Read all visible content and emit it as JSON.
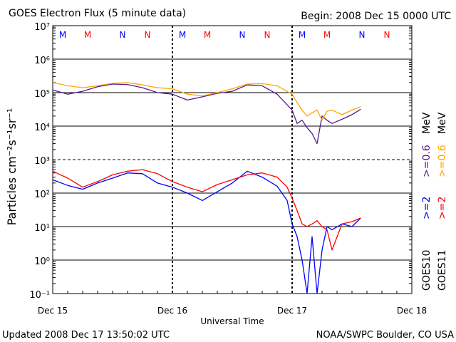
{
  "header": {
    "title": "GOES Electron Flux (5 minute data)",
    "begin": "Begin: 2008 Dec 15 0000 UTC"
  },
  "footer": {
    "updated": "Updated 2008 Dec 17 13:50:02 UTC",
    "source": "NOAA/SWPC Boulder, CO USA"
  },
  "colors": {
    "goes10_ge2": "#0000ff",
    "goes10_ge06": "#551a8b",
    "goes11_ge2": "#ff0000",
    "goes11_ge06": "#ffa500"
  },
  "chart_data": {
    "type": "line",
    "title": "GOES Electron Flux (5 minute data)",
    "xlabel": "Universal Time",
    "ylabel": "Particles cm⁻²s⁻¹sr⁻¹",
    "y_scale": "log",
    "ylim": [
      0.1,
      10000000
    ],
    "xlim": [
      "2008-12-15T00:00",
      "2008-12-18T00:00"
    ],
    "x_ticks": [
      "Dec 15",
      "Dec 16",
      "Dec 17",
      "Dec 18"
    ],
    "y_ticks": [
      "10⁻¹",
      "10⁰",
      "10¹",
      "10²",
      "10³",
      "10⁴",
      "10⁵",
      "10⁶",
      "10⁷"
    ],
    "grid": true,
    "threshold_line": 1000,
    "markers": [
      {
        "label": "M",
        "time": "2008-12-15T02:00",
        "color": "#0000ff"
      },
      {
        "label": "M",
        "time": "2008-12-15T07:00",
        "color": "#ff0000"
      },
      {
        "label": "N",
        "time": "2008-12-15T14:00",
        "color": "#0000ff"
      },
      {
        "label": "N",
        "time": "2008-12-15T19:00",
        "color": "#ff0000"
      },
      {
        "label": "M",
        "time": "2008-12-16T02:00",
        "color": "#0000ff"
      },
      {
        "label": "M",
        "time": "2008-12-16T07:00",
        "color": "#ff0000"
      },
      {
        "label": "N",
        "time": "2008-12-16T14:00",
        "color": "#0000ff"
      },
      {
        "label": "N",
        "time": "2008-12-16T19:00",
        "color": "#ff0000"
      },
      {
        "label": "M",
        "time": "2008-12-17T02:00",
        "color": "#0000ff"
      },
      {
        "label": "M",
        "time": "2008-12-17T07:00",
        "color": "#ff0000"
      },
      {
        "label": "N",
        "time": "2008-12-17T14:00",
        "color": "#0000ff"
      },
      {
        "label": "N",
        "time": "2008-12-17T19:00",
        "color": "#ff0000"
      }
    ],
    "legend": [
      {
        "label": "GOES10",
        "entries": [
          {
            "text": ">=2",
            "color": "#0000ff"
          },
          {
            "text": ">=0.6",
            "color": "#551a8b"
          }
        ]
      },
      {
        "label": "GOES11",
        "entries": [
          {
            "text": ">=2",
            "color": "#ff0000"
          },
          {
            "text": ">=0.6",
            "color": "#ffa500"
          }
        ]
      }
    ],
    "legend_unit": "MeV",
    "series": [
      {
        "name": "GOES10 >=0.6 MeV",
        "color": "#551a8b",
        "x": [
          "2008-12-15T00:00",
          "2008-12-15T03:00",
          "2008-12-15T06:00",
          "2008-12-15T09:00",
          "2008-12-15T12:00",
          "2008-12-15T15:00",
          "2008-12-15T18:00",
          "2008-12-15T21:00",
          "2008-12-16T00:00",
          "2008-12-16T03:00",
          "2008-12-16T06:00",
          "2008-12-16T09:00",
          "2008-12-16T12:00",
          "2008-12-16T15:00",
          "2008-12-16T18:00",
          "2008-12-16T21:00",
          "2008-12-17T00:00",
          "2008-12-17T01:00",
          "2008-12-17T02:00",
          "2008-12-17T03:00",
          "2008-12-17T04:00",
          "2008-12-17T05:00",
          "2008-12-17T06:00",
          "2008-12-17T07:00",
          "2008-12-17T08:00",
          "2008-12-17T10:00",
          "2008-12-17T12:00",
          "2008-12-17T13:45"
        ],
        "values": [
          120000,
          90000,
          110000,
          150000,
          180000,
          175000,
          140000,
          100000,
          90000,
          60000,
          75000,
          95000,
          110000,
          170000,
          160000,
          90000,
          30000,
          12000,
          15000,
          9000,
          6000,
          3000,
          20000,
          15000,
          12000,
          16000,
          22000,
          32000
        ]
      },
      {
        "name": "GOES11 >=0.6 MeV",
        "color": "#ffa500",
        "x": [
          "2008-12-15T00:00",
          "2008-12-15T03:00",
          "2008-12-15T06:00",
          "2008-12-15T09:00",
          "2008-12-15T12:00",
          "2008-12-15T15:00",
          "2008-12-15T18:00",
          "2008-12-15T21:00",
          "2008-12-16T00:00",
          "2008-12-16T03:00",
          "2008-12-16T06:00",
          "2008-12-16T09:00",
          "2008-12-16T12:00",
          "2008-12-16T15:00",
          "2008-12-16T18:00",
          "2008-12-16T21:00",
          "2008-12-17T00:00",
          "2008-12-17T01:00",
          "2008-12-17T02:00",
          "2008-12-17T03:00",
          "2008-12-17T04:00",
          "2008-12-17T05:00",
          "2008-12-17T06:00",
          "2008-12-17T07:00",
          "2008-12-17T08:00",
          "2008-12-17T10:00",
          "2008-12-17T12:00",
          "2008-12-17T13:45"
        ],
        "values": [
          200000,
          160000,
          140000,
          160000,
          190000,
          200000,
          170000,
          140000,
          130000,
          90000,
          80000,
          100000,
          130000,
          180000,
          185000,
          160000,
          90000,
          50000,
          30000,
          20000,
          25000,
          30000,
          15000,
          28000,
          30000,
          22000,
          30000,
          38000
        ]
      },
      {
        "name": "GOES10 >=2 MeV",
        "color": "#0000ff",
        "x": [
          "2008-12-15T00:00",
          "2008-12-15T03:00",
          "2008-12-15T06:00",
          "2008-12-15T09:00",
          "2008-12-15T12:00",
          "2008-12-15T15:00",
          "2008-12-15T18:00",
          "2008-12-15T21:00",
          "2008-12-16T00:00",
          "2008-12-16T03:00",
          "2008-12-16T06:00",
          "2008-12-16T09:00",
          "2008-12-16T12:00",
          "2008-12-16T15:00",
          "2008-12-16T18:00",
          "2008-12-16T21:00",
          "2008-12-16T23:00",
          "2008-12-17T00:00",
          "2008-12-17T01:00",
          "2008-12-17T02:00",
          "2008-12-17T03:00",
          "2008-12-17T04:00",
          "2008-12-17T05:00",
          "2008-12-17T06:00",
          "2008-12-17T07:00",
          "2008-12-17T08:00",
          "2008-12-17T10:00",
          "2008-12-17T12:00",
          "2008-12-17T13:45"
        ],
        "values": [
          250,
          170,
          130,
          200,
          280,
          400,
          380,
          200,
          150,
          100,
          60,
          110,
          200,
          450,
          300,
          160,
          60,
          12,
          5,
          1,
          0.1,
          5,
          0.1,
          2,
          10,
          8,
          12,
          10,
          18
        ]
      },
      {
        "name": "GOES11 >=2 MeV",
        "color": "#ff0000",
        "x": [
          "2008-12-15T00:00",
          "2008-12-15T03:00",
          "2008-12-15T06:00",
          "2008-12-15T09:00",
          "2008-12-15T12:00",
          "2008-12-15T15:00",
          "2008-12-15T18:00",
          "2008-12-15T21:00",
          "2008-12-16T00:00",
          "2008-12-16T03:00",
          "2008-12-16T06:00",
          "2008-12-16T09:00",
          "2008-12-16T12:00",
          "2008-12-16T15:00",
          "2008-12-16T18:00",
          "2008-12-16T21:00",
          "2008-12-16T23:00",
          "2008-12-17T00:00",
          "2008-12-17T01:00",
          "2008-12-17T02:00",
          "2008-12-17T03:00",
          "2008-12-17T04:00",
          "2008-12-17T05:00",
          "2008-12-17T06:00",
          "2008-12-17T07:00",
          "2008-12-17T08:00",
          "2008-12-17T10:00",
          "2008-12-17T12:00",
          "2008-12-17T13:45"
        ],
        "values": [
          450,
          280,
          150,
          220,
          350,
          450,
          500,
          380,
          220,
          150,
          110,
          180,
          250,
          350,
          400,
          300,
          150,
          70,
          30,
          12,
          10,
          12,
          15,
          10,
          8,
          2,
          12,
          14,
          18
        ]
      }
    ]
  }
}
